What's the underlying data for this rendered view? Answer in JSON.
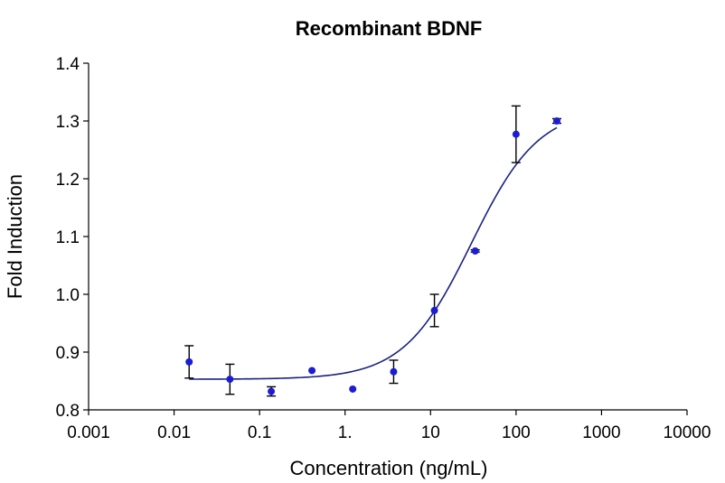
{
  "chart_data": {
    "type": "scatter",
    "title": "Recombinant BDNF",
    "xlabel": "Concentration (ng/mL)",
    "ylabel": "Fold Induction",
    "x_scale": "log",
    "xlim": [
      0.001,
      10000
    ],
    "ylim": [
      0.8,
      1.4
    ],
    "x_ticks": [
      0.001,
      0.01,
      0.1,
      1,
      10,
      100,
      1000,
      10000
    ],
    "x_tick_labels": [
      "0.001",
      "0.01",
      "0.1",
      "1.",
      "10",
      "100",
      "1000",
      "10000"
    ],
    "y_ticks": [
      0.8,
      0.9,
      1.0,
      1.1,
      1.2,
      1.3,
      1.4
    ],
    "y_tick_labels": [
      "0.8",
      "0.9",
      "1.0",
      "1.1",
      "1.2",
      "1.3",
      "1.4"
    ],
    "grid": false,
    "legend": "none",
    "points": [
      {
        "x": 0.015,
        "y": 0.883,
        "err": 0.028
      },
      {
        "x": 0.045,
        "y": 0.853,
        "err": 0.026
      },
      {
        "x": 0.137,
        "y": 0.832,
        "err": 0.008
      },
      {
        "x": 0.41,
        "y": 0.868,
        "err": 0
      },
      {
        "x": 1.23,
        "y": 0.836,
        "err": 0
      },
      {
        "x": 3.7,
        "y": 0.866,
        "err": 0.02
      },
      {
        "x": 11.1,
        "y": 0.972,
        "err": 0.028
      },
      {
        "x": 33.3,
        "y": 1.075,
        "err": 0.002
      },
      {
        "x": 100,
        "y": 1.277,
        "err": 0.049
      },
      {
        "x": 300,
        "y": 1.3,
        "err": 0.004
      }
    ],
    "fit": {
      "model": "4PL",
      "bottom": 0.853,
      "top": 1.323,
      "ec50": 30,
      "hill": 1.1,
      "x_range": [
        0.015,
        300
      ]
    },
    "colors": {
      "points": "#1c1cd4",
      "curve": "#1a237e",
      "error_bars": "#000000",
      "axes": "#000000"
    }
  }
}
